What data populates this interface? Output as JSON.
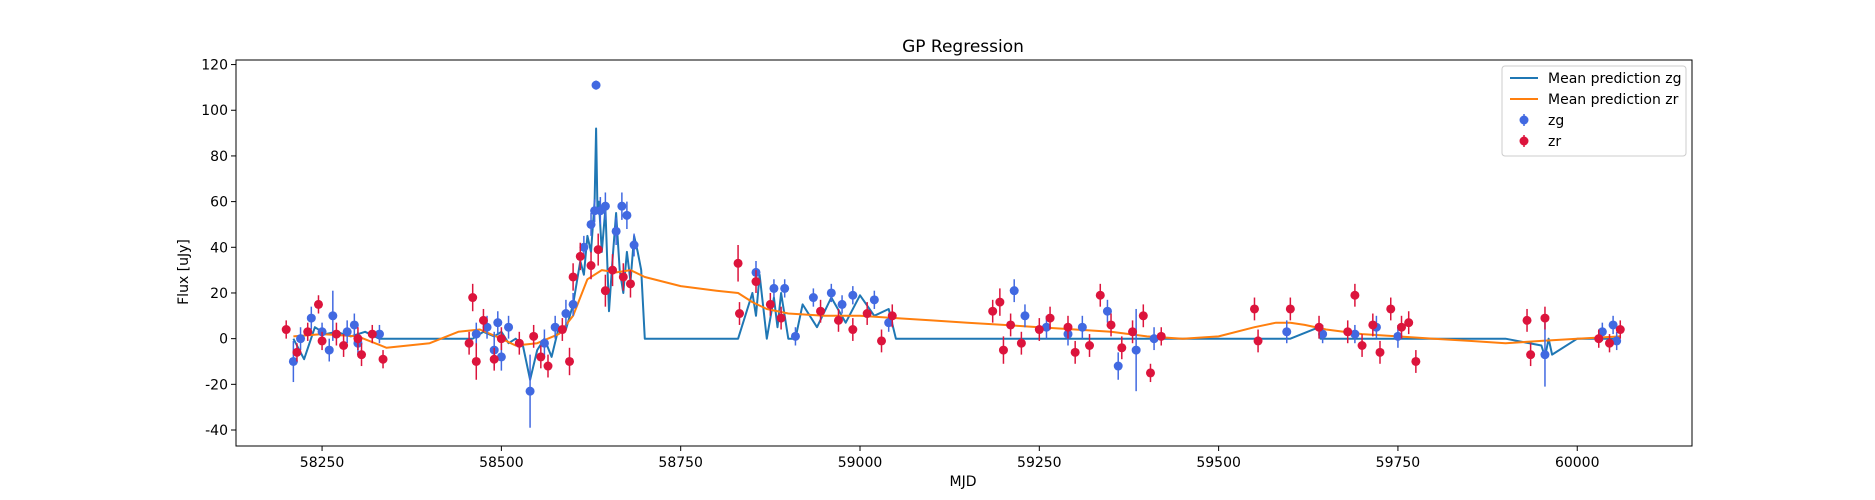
{
  "chart_data": {
    "type": "scatter",
    "title": "GP Regression",
    "xlabel": "MJD",
    "ylabel": "Flux [uJy]",
    "xlim": [
      58130,
      60160
    ],
    "ylim": [
      -47,
      122
    ],
    "xticks": [
      58250,
      58500,
      58750,
      59000,
      59250,
      59500,
      59750,
      60000
    ],
    "yticks": [
      -40,
      -20,
      0,
      20,
      40,
      60,
      80,
      100,
      120
    ],
    "grid": false,
    "legend": {
      "position": "top-right",
      "entries": [
        {
          "label": "Mean prediction zg",
          "kind": "line",
          "color": "#1f77b4"
        },
        {
          "label": "Mean prediction zr",
          "kind": "line",
          "color": "#ff7f0e"
        },
        {
          "label": "zg",
          "kind": "errorbar",
          "color": "#4169e1"
        },
        {
          "label": "zr",
          "kind": "errorbar",
          "color": "#dc143c"
        }
      ]
    },
    "series": [
      {
        "name": "Mean prediction zg",
        "kind": "line",
        "color": "#1f77b4",
        "x": [
          58210,
          58225,
          58240,
          58255,
          58270,
          58290,
          58310,
          58330,
          58360,
          58400,
          58440,
          58460,
          58475,
          58490,
          58500,
          58510,
          58520,
          58530,
          58540,
          58550,
          58560,
          58570,
          58580,
          58590,
          58600,
          58610,
          58615,
          58620,
          58625,
          58630,
          58632,
          58634,
          58636,
          58640,
          58645,
          58650,
          58655,
          58660,
          58665,
          58670,
          58675,
          58680,
          58685,
          58690,
          58695,
          58700,
          58710,
          58830,
          58850,
          58855,
          58860,
          58870,
          58880,
          58885,
          58890,
          58900,
          58910,
          58920,
          58940,
          58960,
          58980,
          59000,
          59020,
          59040,
          59050,
          59060,
          59200,
          59600,
          59640,
          59642,
          59645,
          59660,
          59700,
          59900,
          59950,
          59955,
          59960,
          59965,
          60000,
          60060
        ],
        "y": [
          0,
          -9,
          5,
          2,
          3,
          1,
          3,
          0,
          0,
          0,
          0,
          0,
          3,
          1,
          3,
          -2,
          0,
          -3,
          -18,
          -5,
          0,
          -8,
          5,
          4,
          15,
          34,
          28,
          45,
          38,
          60,
          92,
          55,
          60,
          38,
          57,
          12,
          35,
          55,
          30,
          20,
          38,
          25,
          45,
          38,
          30,
          0,
          0,
          0,
          20,
          10,
          28,
          0,
          18,
          5,
          20,
          0,
          0,
          15,
          5,
          18,
          7,
          19,
          10,
          13,
          0,
          0,
          0,
          0,
          5,
          0,
          0,
          0,
          0,
          0,
          -3,
          -8,
          0,
          -7,
          0,
          0
        ]
      },
      {
        "name": "Mean prediction zr",
        "kind": "line",
        "color": "#ff7f0e",
        "x": [
          58210,
          58250,
          58300,
          58340,
          58400,
          58440,
          58470,
          58500,
          58520,
          58550,
          58580,
          58600,
          58620,
          58640,
          58660,
          58680,
          58700,
          58750,
          58800,
          58830,
          58850,
          58870,
          58900,
          58950,
          59000,
          59050,
          59100,
          59150,
          59200,
          59250,
          59300,
          59350,
          59400,
          59450,
          59500,
          59550,
          59580,
          59600,
          59620,
          59650,
          59700,
          59750,
          59800,
          59850,
          59900,
          59950,
          60000,
          60060
        ],
        "y": [
          1,
          2,
          1,
          -4,
          -2,
          3,
          4,
          0,
          -3,
          -2,
          2,
          10,
          26,
          30,
          29,
          30,
          27,
          23,
          21,
          20,
          16,
          13,
          11,
          10,
          10,
          9,
          8,
          7,
          6,
          5,
          4,
          3,
          1,
          0,
          1,
          5,
          7,
          7,
          6,
          4,
          2,
          1,
          0,
          -1,
          -2,
          -1,
          0,
          1
        ]
      },
      {
        "name": "zg",
        "kind": "errorbar",
        "color": "#4169e1",
        "points": [
          {
            "x": 58210,
            "y": -10,
            "err": 9
          },
          {
            "x": 58220,
            "y": 0,
            "err": 5
          },
          {
            "x": 58235,
            "y": 9,
            "err": 5
          },
          {
            "x": 58250,
            "y": 3,
            "err": 4
          },
          {
            "x": 58260,
            "y": -5,
            "err": 5
          },
          {
            "x": 58265,
            "y": 10,
            "err": 11
          },
          {
            "x": 58285,
            "y": 3,
            "err": 5
          },
          {
            "x": 58295,
            "y": 6,
            "err": 5
          },
          {
            "x": 58300,
            "y": -2,
            "err": 5
          },
          {
            "x": 58330,
            "y": 2,
            "err": 4
          },
          {
            "x": 58465,
            "y": 2,
            "err": 5
          },
          {
            "x": 58480,
            "y": 5,
            "err": 5
          },
          {
            "x": 58490,
            "y": -5,
            "err": 8
          },
          {
            "x": 58495,
            "y": 7,
            "err": 5
          },
          {
            "x": 58500,
            "y": -8,
            "err": 6
          },
          {
            "x": 58510,
            "y": 5,
            "err": 5
          },
          {
            "x": 58540,
            "y": -23,
            "err": 16
          },
          {
            "x": 58560,
            "y": -2,
            "err": 6
          },
          {
            "x": 58575,
            "y": 5,
            "err": 5
          },
          {
            "x": 58590,
            "y": 11,
            "err": 6
          },
          {
            "x": 58600,
            "y": 15,
            "err": 5
          },
          {
            "x": 58615,
            "y": 40,
            "err": 5
          },
          {
            "x": 58625,
            "y": 50,
            "err": 5
          },
          {
            "x": 58630,
            "y": 56,
            "err": 5
          },
          {
            "x": 58632,
            "y": 111,
            "err": 2
          },
          {
            "x": 58638,
            "y": 56,
            "err": 6
          },
          {
            "x": 58645,
            "y": 58,
            "err": 6
          },
          {
            "x": 58660,
            "y": 47,
            "err": 6
          },
          {
            "x": 58668,
            "y": 58,
            "err": 6
          },
          {
            "x": 58675,
            "y": 54,
            "err": 6
          },
          {
            "x": 58685,
            "y": 41,
            "err": 5
          },
          {
            "x": 58855,
            "y": 29,
            "err": 5
          },
          {
            "x": 58880,
            "y": 22,
            "err": 4
          },
          {
            "x": 58895,
            "y": 22,
            "err": 4
          },
          {
            "x": 58910,
            "y": 1,
            "err": 4
          },
          {
            "x": 58935,
            "y": 18,
            "err": 4
          },
          {
            "x": 58960,
            "y": 20,
            "err": 4
          },
          {
            "x": 58975,
            "y": 15,
            "err": 4
          },
          {
            "x": 58990,
            "y": 19,
            "err": 4
          },
          {
            "x": 59020,
            "y": 17,
            "err": 4
          },
          {
            "x": 59040,
            "y": 7,
            "err": 4
          },
          {
            "x": 59215,
            "y": 21,
            "err": 5
          },
          {
            "x": 59230,
            "y": 10,
            "err": 5
          },
          {
            "x": 59260,
            "y": 5,
            "err": 5
          },
          {
            "x": 59290,
            "y": 2,
            "err": 5
          },
          {
            "x": 59310,
            "y": 5,
            "err": 5
          },
          {
            "x": 59345,
            "y": 12,
            "err": 5
          },
          {
            "x": 59360,
            "y": -12,
            "err": 6
          },
          {
            "x": 59385,
            "y": -5,
            "err": 18
          },
          {
            "x": 59410,
            "y": 0,
            "err": 5
          },
          {
            "x": 59595,
            "y": 3,
            "err": 5
          },
          {
            "x": 59645,
            "y": 2,
            "err": 4
          },
          {
            "x": 59690,
            "y": 2,
            "err": 4
          },
          {
            "x": 59720,
            "y": 5,
            "err": 5
          },
          {
            "x": 59750,
            "y": 1,
            "err": 5
          },
          {
            "x": 59955,
            "y": -7,
            "err": 14
          },
          {
            "x": 60035,
            "y": 3,
            "err": 4
          },
          {
            "x": 60050,
            "y": 6,
            "err": 4
          },
          {
            "x": 60055,
            "y": -1,
            "err": 4
          }
        ]
      },
      {
        "name": "zr",
        "kind": "errorbar",
        "color": "#dc143c",
        "points": [
          {
            "x": 58200,
            "y": 4,
            "err": 4
          },
          {
            "x": 58215,
            "y": -6,
            "err": 4
          },
          {
            "x": 58230,
            "y": 3,
            "err": 4
          },
          {
            "x": 58245,
            "y": 15,
            "err": 4
          },
          {
            "x": 58250,
            "y": -1,
            "err": 4
          },
          {
            "x": 58270,
            "y": 2,
            "err": 5
          },
          {
            "x": 58280,
            "y": -3,
            "err": 5
          },
          {
            "x": 58300,
            "y": 0,
            "err": 5
          },
          {
            "x": 58305,
            "y": -7,
            "err": 5
          },
          {
            "x": 58320,
            "y": 2,
            "err": 4
          },
          {
            "x": 58335,
            "y": -9,
            "err": 4
          },
          {
            "x": 58455,
            "y": -2,
            "err": 5
          },
          {
            "x": 58460,
            "y": 18,
            "err": 6
          },
          {
            "x": 58465,
            "y": -10,
            "err": 8
          },
          {
            "x": 58475,
            "y": 8,
            "err": 5
          },
          {
            "x": 58490,
            "y": -9,
            "err": 5
          },
          {
            "x": 58500,
            "y": 0,
            "err": 5
          },
          {
            "x": 58525,
            "y": -2,
            "err": 5
          },
          {
            "x": 58545,
            "y": 1,
            "err": 5
          },
          {
            "x": 58555,
            "y": -8,
            "err": 5
          },
          {
            "x": 58565,
            "y": -12,
            "err": 5
          },
          {
            "x": 58585,
            "y": 4,
            "err": 5
          },
          {
            "x": 58595,
            "y": -10,
            "err": 6
          },
          {
            "x": 58600,
            "y": 27,
            "err": 6
          },
          {
            "x": 58610,
            "y": 36,
            "err": 6
          },
          {
            "x": 58625,
            "y": 32,
            "err": 6
          },
          {
            "x": 58635,
            "y": 39,
            "err": 7
          },
          {
            "x": 58645,
            "y": 21,
            "err": 7
          },
          {
            "x": 58655,
            "y": 30,
            "err": 7
          },
          {
            "x": 58670,
            "y": 27,
            "err": 6
          },
          {
            "x": 58680,
            "y": 24,
            "err": 6
          },
          {
            "x": 58830,
            "y": 33,
            "err": 8
          },
          {
            "x": 58832,
            "y": 11,
            "err": 5
          },
          {
            "x": 58855,
            "y": 25,
            "err": 5
          },
          {
            "x": 58875,
            "y": 15,
            "err": 5
          },
          {
            "x": 58890,
            "y": 9,
            "err": 5
          },
          {
            "x": 58945,
            "y": 12,
            "err": 5
          },
          {
            "x": 58970,
            "y": 8,
            "err": 5
          },
          {
            "x": 58990,
            "y": 4,
            "err": 5
          },
          {
            "x": 59010,
            "y": 11,
            "err": 5
          },
          {
            "x": 59030,
            "y": -1,
            "err": 5
          },
          {
            "x": 59045,
            "y": 10,
            "err": 5
          },
          {
            "x": 59185,
            "y": 12,
            "err": 5
          },
          {
            "x": 59195,
            "y": 16,
            "err": 6
          },
          {
            "x": 59200,
            "y": -5,
            "err": 6
          },
          {
            "x": 59210,
            "y": 6,
            "err": 5
          },
          {
            "x": 59225,
            "y": -2,
            "err": 5
          },
          {
            "x": 59250,
            "y": 4,
            "err": 5
          },
          {
            "x": 59265,
            "y": 9,
            "err": 5
          },
          {
            "x": 59290,
            "y": 5,
            "err": 5
          },
          {
            "x": 59300,
            "y": -6,
            "err": 5
          },
          {
            "x": 59320,
            "y": -3,
            "err": 5
          },
          {
            "x": 59335,
            "y": 19,
            "err": 5
          },
          {
            "x": 59350,
            "y": 6,
            "err": 5
          },
          {
            "x": 59365,
            "y": -4,
            "err": 5
          },
          {
            "x": 59380,
            "y": 3,
            "err": 5
          },
          {
            "x": 59395,
            "y": 10,
            "err": 5
          },
          {
            "x": 59405,
            "y": -15,
            "err": 4
          },
          {
            "x": 59420,
            "y": 1,
            "err": 4
          },
          {
            "x": 59550,
            "y": 13,
            "err": 5
          },
          {
            "x": 59555,
            "y": -1,
            "err": 5
          },
          {
            "x": 59600,
            "y": 13,
            "err": 5
          },
          {
            "x": 59640,
            "y": 5,
            "err": 5
          },
          {
            "x": 59680,
            "y": 3,
            "err": 5
          },
          {
            "x": 59690,
            "y": 19,
            "err": 5
          },
          {
            "x": 59700,
            "y": -3,
            "err": 5
          },
          {
            "x": 59715,
            "y": 6,
            "err": 5
          },
          {
            "x": 59725,
            "y": -6,
            "err": 5
          },
          {
            "x": 59740,
            "y": 13,
            "err": 5
          },
          {
            "x": 59755,
            "y": 5,
            "err": 5
          },
          {
            "x": 59765,
            "y": 7,
            "err": 5
          },
          {
            "x": 59775,
            "y": -10,
            "err": 5
          },
          {
            "x": 59930,
            "y": 8,
            "err": 5
          },
          {
            "x": 59935,
            "y": -7,
            "err": 5
          },
          {
            "x": 59955,
            "y": 9,
            "err": 5
          },
          {
            "x": 60030,
            "y": 0,
            "err": 4
          },
          {
            "x": 60045,
            "y": -2,
            "err": 4
          },
          {
            "x": 60060,
            "y": 4,
            "err": 4
          }
        ]
      }
    ]
  }
}
